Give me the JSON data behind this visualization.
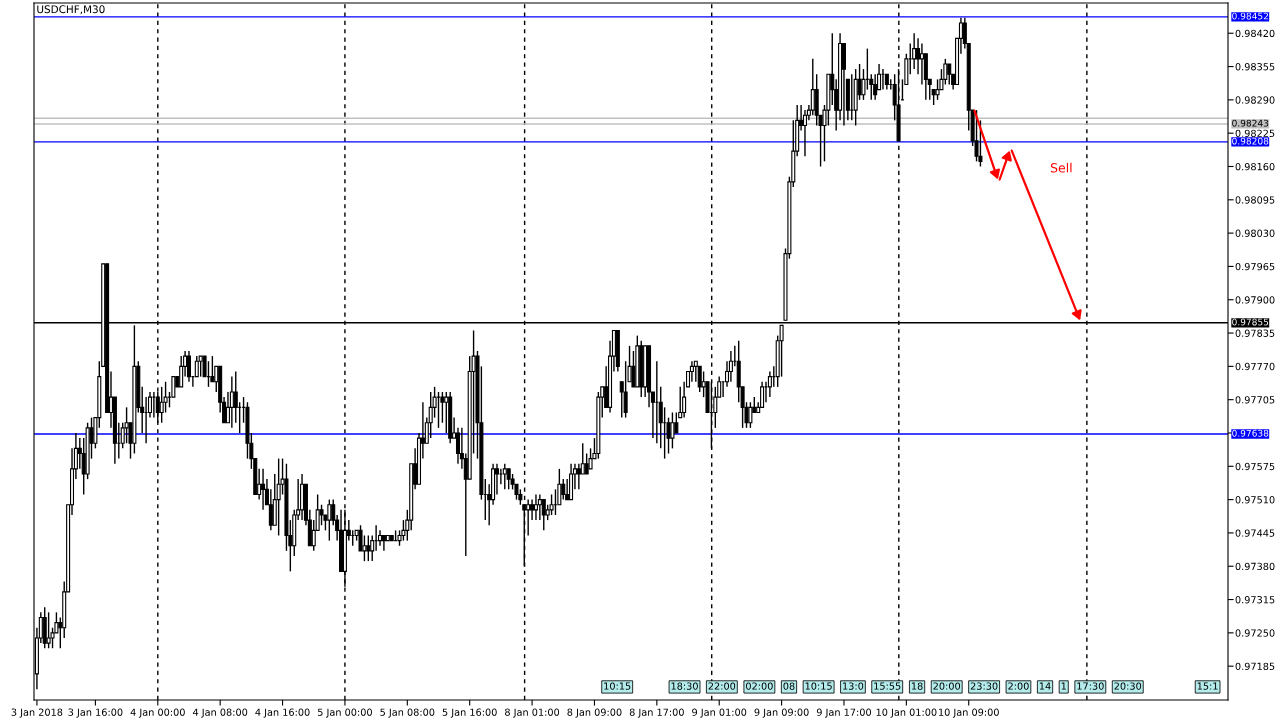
{
  "chart_data": {
    "type": "candlestick",
    "title": "USDCHF,M30",
    "color": "#000000",
    "categories": [
      "3 Jan 2018",
      null,
      null,
      null,
      null,
      null,
      null,
      null,
      null,
      null,
      null,
      null,
      null,
      null,
      null,
      "3 Jan 16:00",
      null,
      null,
      null,
      null,
      null,
      null,
      null,
      null,
      null,
      null,
      null,
      null,
      null,
      null,
      null,
      "4 Jan 00:00",
      null,
      null,
      null,
      null,
      null,
      null,
      null,
      null,
      null,
      null,
      null,
      null,
      null,
      null,
      null,
      "4 Jan 08:00",
      null,
      null,
      null,
      null,
      null,
      null,
      null,
      null,
      null,
      null,
      null,
      null,
      null,
      null,
      null,
      "4 Jan 16:00",
      null,
      null,
      null,
      null,
      null,
      null,
      null,
      null,
      null,
      null,
      null,
      null,
      null,
      null,
      null,
      "5 Jan 00:00",
      null,
      null,
      null,
      null,
      null,
      null,
      null,
      null,
      null,
      null,
      null,
      null,
      null,
      null,
      null,
      "5 Jan 08:00",
      null,
      null,
      null,
      null,
      null,
      null,
      null,
      null,
      null,
      null,
      null,
      null,
      null,
      null,
      null,
      "5 Jan 16:00",
      null,
      null,
      null,
      null,
      null,
      null,
      null,
      null,
      null,
      null,
      null,
      null,
      null,
      null,
      null,
      "8 Jan 01:00",
      null,
      null,
      null,
      null,
      null,
      null,
      null,
      null,
      null,
      null,
      null,
      null,
      null,
      null,
      null,
      "8 Jan 09:00",
      null,
      null,
      null,
      null,
      null,
      null,
      null,
      null,
      null,
      null,
      null,
      null,
      null,
      null,
      null,
      "8 Jan 17:00",
      null,
      null,
      null,
      null,
      null,
      null,
      null,
      null,
      null,
      null,
      null,
      null,
      null,
      null,
      null,
      "9 Jan 01:00",
      null,
      null,
      null,
      null,
      null,
      null,
      null,
      null,
      null,
      null,
      null,
      null,
      null,
      null,
      null,
      "9 Jan 09:00",
      null,
      null,
      null,
      null,
      null,
      null,
      null,
      null,
      null,
      null,
      null,
      null,
      null,
      null,
      null,
      "9 Jan 17:00",
      null,
      null,
      null,
      null,
      null,
      null,
      null,
      null,
      null,
      null,
      null,
      null,
      null,
      null,
      null,
      "10 Jan 01:00",
      null,
      null,
      null,
      null,
      null,
      null,
      null,
      null,
      null,
      null,
      null,
      null,
      null,
      null,
      null,
      "10 Jan 09:00",
      null,
      null,
      null,
      null,
      null,
      null,
      null,
      null,
      null,
      null,
      null,
      null,
      null,
      null,
      null,
      null,
      null,
      null,
      null,
      null,
      null,
      null,
      null,
      null,
      null,
      null,
      null,
      null,
      null,
      null,
      null,
      null,
      null,
      null,
      null,
      null,
      null,
      null,
      null,
      null,
      null,
      null,
      null,
      null,
      null,
      null,
      null,
      null,
      null,
      null,
      null,
      null,
      null,
      null,
      null,
      null,
      null,
      null,
      null,
      null,
      null,
      null,
      null,
      null,
      null,
      null
    ],
    "ohlc": [
      [
        0.9717,
        0.9726,
        0.9714,
        0.9724
      ],
      [
        0.9724,
        0.9729,
        0.9723,
        0.9728
      ],
      [
        0.9728,
        0.973,
        0.9722,
        0.9723
      ],
      [
        0.9723,
        0.9729,
        0.9722,
        0.9724
      ],
      [
        0.9724,
        0.9726,
        0.9722,
        0.9725
      ],
      [
        0.9725,
        0.9729,
        0.9725,
        0.9727
      ],
      [
        0.9727,
        0.9728,
        0.9722,
        0.9726
      ],
      [
        0.9726,
        0.9735,
        0.9724,
        0.9733
      ],
      [
        0.9733,
        0.975,
        0.9733,
        0.975
      ],
      [
        0.975,
        0.9761,
        0.9748,
        0.9757
      ],
      [
        0.9757,
        0.9764,
        0.9755,
        0.9761
      ],
      [
        0.9761,
        0.9763,
        0.9757,
        0.976
      ],
      [
        0.976,
        0.9763,
        0.9752,
        0.9756
      ],
      [
        0.9756,
        0.9766,
        0.9755,
        0.9765
      ],
      [
        0.9765,
        0.9767,
        0.9759,
        0.9762
      ],
      [
        0.9762,
        0.9767,
        0.9761,
        0.9767
      ],
      [
        0.9767,
        0.9778,
        0.9765,
        0.9775
      ],
      [
        0.9777,
        0.9797,
        0.9777,
        0.9797
      ],
      [
        0.9797,
        0.9797,
        0.9768,
        0.9768
      ],
      [
        0.9768,
        0.9776,
        0.9765,
        0.9771
      ],
      [
        0.9771,
        0.9771,
        0.9758,
        0.9762
      ],
      [
        0.9762,
        0.9766,
        0.9759,
        0.9762
      ],
      [
        0.9762,
        0.9766,
        0.9761,
        0.9765
      ],
      [
        0.9765,
        0.9769,
        0.9762,
        0.9766
      ],
      [
        0.9766,
        0.9766,
        0.9759,
        0.9762
      ],
      [
        0.9762,
        0.9785,
        0.976,
        0.9777
      ],
      [
        0.9777,
        0.9778,
        0.9768,
        0.9769
      ],
      [
        0.9769,
        0.9773,
        0.9764,
        0.9768
      ],
      [
        0.9768,
        0.9771,
        0.9762,
        0.9768
      ],
      [
        0.9768,
        0.9772,
        0.9767,
        0.9771
      ],
      [
        0.9771,
        0.9772,
        0.9767,
        0.9771
      ],
      [
        0.9771,
        0.9772,
        0.9766,
        0.9768
      ],
      [
        0.9768,
        0.9773,
        0.9766,
        0.977
      ],
      [
        0.977,
        0.9774,
        0.9768,
        0.9771
      ],
      [
        0.9771,
        0.9772,
        0.9769,
        0.9771
      ],
      [
        0.9771,
        0.9775,
        0.9771,
        0.9775
      ],
      [
        0.9775,
        0.9775,
        0.9773,
        0.9773
      ],
      [
        0.9773,
        0.9779,
        0.9773,
        0.9777
      ],
      [
        0.9777,
        0.978,
        0.9775,
        0.9779
      ],
      [
        0.9779,
        0.978,
        0.9774,
        0.9775
      ],
      [
        0.9775,
        0.9775,
        0.9773,
        0.9775
      ],
      [
        0.9775,
        0.9779,
        0.9775,
        0.9778
      ],
      [
        0.9778,
        0.9779,
        0.9775,
        0.9779
      ],
      [
        0.9779,
        0.9779,
        0.9775,
        0.9775
      ],
      [
        0.9775,
        0.9778,
        0.9773,
        0.9775
      ],
      [
        0.9775,
        0.9779,
        0.9774,
        0.9774
      ],
      [
        0.9774,
        0.9777,
        0.9772,
        0.9777
      ],
      [
        0.9777,
        0.9777,
        0.9768,
        0.977
      ],
      [
        0.977,
        0.9771,
        0.9766,
        0.9766
      ],
      [
        0.9766,
        0.9772,
        0.9766,
        0.9769
      ],
      [
        0.9769,
        0.9775,
        0.9765,
        0.9772
      ],
      [
        0.9772,
        0.9776,
        0.9766,
        0.9769
      ],
      [
        0.9769,
        0.977,
        0.9764,
        0.9769
      ],
      [
        0.9769,
        0.9771,
        0.9766,
        0.9769
      ],
      [
        0.9769,
        0.977,
        0.9759,
        0.9762
      ],
      [
        0.9762,
        0.9764,
        0.9757,
        0.9759
      ],
      [
        0.9759,
        0.9759,
        0.9752,
        0.9752
      ],
      [
        0.9752,
        0.9757,
        0.9751,
        0.9754
      ],
      [
        0.9754,
        0.9757,
        0.9749,
        0.9753
      ],
      [
        0.9753,
        0.9755,
        0.975,
        0.975
      ],
      [
        0.975,
        0.9753,
        0.9745,
        0.9746
      ],
      [
        0.9746,
        0.9756,
        0.9746,
        0.9751
      ],
      [
        0.9751,
        0.9759,
        0.9744,
        0.9754
      ],
      [
        0.9754,
        0.9759,
        0.9752,
        0.9755
      ],
      [
        0.9755,
        0.9758,
        0.9741,
        0.9744
      ],
      [
        0.9744,
        0.9747,
        0.9737,
        0.9742
      ],
      [
        0.9742,
        0.9749,
        0.974,
        0.9748
      ],
      [
        0.9748,
        0.9755,
        0.9747,
        0.9749
      ],
      [
        0.9749,
        0.9756,
        0.9747,
        0.9754
      ],
      [
        0.9754,
        0.9754,
        0.9746,
        0.9747
      ],
      [
        0.9747,
        0.9749,
        0.9742,
        0.9742
      ],
      [
        0.9742,
        0.9747,
        0.9741,
        0.9745
      ],
      [
        0.9745,
        0.9752,
        0.9745,
        0.9749
      ],
      [
        0.9749,
        0.975,
        0.9746,
        0.9748
      ],
      [
        0.9748,
        0.9748,
        0.9745,
        0.9747
      ],
      [
        0.9747,
        0.9751,
        0.9743,
        0.975
      ],
      [
        0.975,
        0.9751,
        0.9746,
        0.9747
      ],
      [
        0.9747,
        0.9748,
        0.9743,
        0.9745
      ],
      [
        0.9745,
        0.9749,
        0.9737,
        0.9737
      ],
      [
        0.9737,
        0.9749,
        0.9734,
        0.9745
      ],
      [
        0.9745,
        0.9747,
        0.9743,
        0.9744
      ],
      [
        0.9744,
        0.9745,
        0.9742,
        0.9744
      ],
      [
        0.9744,
        0.9745,
        0.9743,
        0.9745
      ],
      [
        0.9745,
        0.9746,
        0.9741,
        0.9741
      ],
      [
        0.9741,
        0.9744,
        0.9739,
        0.9742
      ],
      [
        0.9742,
        0.9744,
        0.9739,
        0.9741
      ],
      [
        0.9741,
        0.9744,
        0.9739,
        0.9743
      ],
      [
        0.9743,
        0.9746,
        0.9741,
        0.9743
      ],
      [
        0.9743,
        0.9745,
        0.9742,
        0.9744
      ],
      [
        0.9744,
        0.9744,
        0.9741,
        0.9743
      ],
      [
        0.9743,
        0.9744,
        0.9743,
        0.9744
      ],
      [
        0.9744,
        0.9744,
        0.9743,
        0.9743
      ],
      [
        0.9743,
        0.9745,
        0.9743,
        0.9743
      ],
      [
        0.9743,
        0.9745,
        0.9742,
        0.9744
      ],
      [
        0.9744,
        0.9747,
        0.9743,
        0.9745
      ],
      [
        0.9745,
        0.9749,
        0.9743,
        0.9747
      ],
      [
        0.9747,
        0.9758,
        0.9745,
        0.9758
      ],
      [
        0.9758,
        0.9761,
        0.9753,
        0.9754
      ],
      [
        0.9754,
        0.9764,
        0.9754,
        0.9763
      ],
      [
        0.9763,
        0.977,
        0.9759,
        0.9762
      ],
      [
        0.9762,
        0.9767,
        0.9762,
        0.9766
      ],
      [
        0.9766,
        0.9772,
        0.9763,
        0.9769
      ],
      [
        0.9769,
        0.9773,
        0.9767,
        0.9771
      ],
      [
        0.9771,
        0.9772,
        0.9765,
        0.9771
      ],
      [
        0.9771,
        0.9772,
        0.9766,
        0.977
      ],
      [
        0.977,
        0.9772,
        0.9764,
        0.9771
      ],
      [
        0.9771,
        0.9772,
        0.9762,
        0.9763
      ],
      [
        0.9763,
        0.9767,
        0.9763,
        0.9764
      ],
      [
        0.9764,
        0.9765,
        0.9758,
        0.976
      ],
      [
        0.976,
        0.9765,
        0.9757,
        0.9759
      ],
      [
        0.9759,
        0.976,
        0.974,
        0.9755
      ],
      [
        0.9755,
        0.9779,
        0.9755,
        0.9776
      ],
      [
        0.9776,
        0.9784,
        0.976,
        0.9779
      ],
      [
        0.9779,
        0.978,
        0.9759,
        0.9766
      ],
      [
        0.9766,
        0.9777,
        0.9751,
        0.9752
      ],
      [
        0.9752,
        0.9755,
        0.9747,
        0.9752
      ],
      [
        0.9752,
        0.9754,
        0.9746,
        0.9751
      ],
      [
        0.9751,
        0.9758,
        0.975,
        0.9757
      ],
      [
        0.9757,
        0.9758,
        0.9752,
        0.9756
      ],
      [
        0.9756,
        0.9757,
        0.9754,
        0.9756
      ],
      [
        0.9756,
        0.9758,
        0.9753,
        0.9757
      ],
      [
        0.9757,
        0.9757,
        0.9753,
        0.9755
      ],
      [
        0.9755,
        0.9756,
        0.9753,
        0.9754
      ],
      [
        0.9754,
        0.9754,
        0.9751,
        0.9752
      ],
      [
        0.9752,
        0.9753,
        0.975,
        0.9751
      ],
      [
        0.975,
        0.975,
        0.9738,
        0.9749
      ],
      [
        0.9749,
        0.9751,
        0.9744,
        0.975
      ],
      [
        0.975,
        0.9751,
        0.9747,
        0.9749
      ],
      [
        0.9749,
        0.9752,
        0.9747,
        0.975
      ],
      [
        0.975,
        0.9752,
        0.9747,
        0.9751
      ],
      [
        0.9751,
        0.9751,
        0.9745,
        0.9748
      ],
      [
        0.9748,
        0.975,
        0.9747,
        0.9749
      ],
      [
        0.9749,
        0.9752,
        0.9748,
        0.975
      ],
      [
        0.975,
        0.9753,
        0.9748,
        0.975
      ],
      [
        0.975,
        0.9757,
        0.975,
        0.9754
      ],
      [
        0.9754,
        0.9755,
        0.9751,
        0.9752
      ],
      [
        0.9752,
        0.9755,
        0.9751,
        0.9751
      ],
      [
        0.9751,
        0.9758,
        0.9751,
        0.9756
      ],
      [
        0.9756,
        0.9758,
        0.9753,
        0.9757
      ],
      [
        0.9757,
        0.9758,
        0.9753,
        0.9756
      ],
      [
        0.9756,
        0.9762,
        0.9756,
        0.9758
      ],
      [
        0.9758,
        0.976,
        0.9756,
        0.9756
      ],
      [
        0.9757,
        0.9761,
        0.9757,
        0.9759
      ],
      [
        0.9759,
        0.9763,
        0.9759,
        0.976
      ],
      [
        0.976,
        0.9772,
        0.9759,
        0.9771
      ],
      [
        0.9771,
        0.9773,
        0.9767,
        0.9773
      ],
      [
        0.9773,
        0.9777,
        0.9769,
        0.9769
      ],
      [
        0.9769,
        0.9782,
        0.9768,
        0.9779
      ],
      [
        0.9779,
        0.9784,
        0.9776,
        0.9784
      ],
      [
        0.9784,
        0.9784,
        0.9776,
        0.9777
      ],
      [
        0.9774,
        0.9774,
        0.9767,
        0.9772
      ],
      [
        0.9772,
        0.9778,
        0.9767,
        0.9768
      ],
      [
        0.9774,
        0.9781,
        0.9774,
        0.9777
      ],
      [
        0.9777,
        0.978,
        0.9773,
        0.9773
      ],
      [
        0.9773,
        0.9783,
        0.9773,
        0.9781
      ],
      [
        0.9781,
        0.9782,
        0.9771,
        0.9773
      ],
      [
        0.9773,
        0.9781,
        0.9771,
        0.9781
      ],
      [
        0.9781,
        0.9781,
        0.9769,
        0.9772
      ],
      [
        0.9772,
        0.9772,
        0.9763,
        0.977
      ],
      [
        0.977,
        0.9778,
        0.9762,
        0.977
      ],
      [
        0.977,
        0.9773,
        0.9761,
        0.9766
      ],
      [
        0.9766,
        0.9769,
        0.9759,
        0.9766
      ],
      [
        0.9766,
        0.9767,
        0.976,
        0.9763
      ],
      [
        0.9763,
        0.9768,
        0.9761,
        0.9766
      ],
      [
        0.9766,
        0.9768,
        0.9764,
        0.9764
      ],
      [
        0.9767,
        0.9773,
        0.9767,
        0.9768
      ],
      [
        0.9768,
        0.9774,
        0.9767,
        0.9771
      ],
      [
        0.9773,
        0.9776,
        0.9773,
        0.9776
      ],
      [
        0.9776,
        0.9778,
        0.9774,
        0.9777
      ],
      [
        0.9777,
        0.9778,
        0.9774,
        0.9778
      ],
      [
        0.9777,
        0.9777,
        0.9772,
        0.9773
      ],
      [
        0.9773,
        0.9776,
        0.9771,
        0.9774
      ],
      [
        0.9774,
        0.9774,
        0.9768,
        0.9768
      ],
      [
        0.9768,
        0.9774,
        0.9761,
        0.9768
      ],
      [
        0.9768,
        0.9773,
        0.9765,
        0.9771
      ],
      [
        0.9771,
        0.9775,
        0.9771,
        0.9774
      ],
      [
        0.9774,
        0.9774,
        0.9771,
        0.9774
      ],
      [
        0.9774,
        0.9778,
        0.9773,
        0.9776
      ],
      [
        0.9776,
        0.978,
        0.9774,
        0.9778
      ],
      [
        0.9778,
        0.9781,
        0.9777,
        0.9778
      ],
      [
        0.9778,
        0.9782,
        0.977,
        0.9773
      ],
      [
        0.9773,
        0.9773,
        0.9765,
        0.9769
      ],
      [
        0.9769,
        0.977,
        0.9765,
        0.9766
      ],
      [
        0.9766,
        0.977,
        0.9765,
        0.9769
      ],
      [
        0.9769,
        0.9771,
        0.9768,
        0.9768
      ],
      [
        0.9768,
        0.977,
        0.9768,
        0.9769
      ],
      [
        0.9769,
        0.9774,
        0.9769,
        0.9773
      ],
      [
        0.9773,
        0.9774,
        0.977,
        0.9773
      ],
      [
        0.9773,
        0.9776,
        0.9771,
        0.9775
      ],
      [
        0.9775,
        0.9777,
        0.9773,
        0.9775
      ],
      [
        0.9775,
        0.9783,
        0.9773,
        0.9782
      ],
      [
        0.9782,
        0.9785,
        0.9775,
        0.9785
      ],
      [
        0.9786,
        0.98,
        0.9786,
        0.9799
      ],
      [
        0.9799,
        0.9814,
        0.9798,
        0.9813
      ],
      [
        0.9813,
        0.9825,
        0.9812,
        0.9819
      ],
      [
        0.9819,
        0.9828,
        0.9818,
        0.9825
      ],
      [
        0.9825,
        0.9828,
        0.9823,
        0.9824
      ],
      [
        0.9824,
        0.9827,
        0.9818,
        0.9826
      ],
      [
        0.9826,
        0.9828,
        0.9825,
        0.9827
      ],
      [
        0.9827,
        0.9837,
        0.9826,
        0.9831
      ],
      [
        0.9831,
        0.9834,
        0.9824,
        0.9826
      ],
      [
        0.9826,
        0.9826,
        0.9816,
        0.9824
      ],
      [
        0.9824,
        0.9828,
        0.9817,
        0.9827
      ],
      [
        0.9827,
        0.9834,
        0.9824,
        0.9834
      ],
      [
        0.9834,
        0.9842,
        0.9828,
        0.9831
      ],
      [
        0.9831,
        0.9833,
        0.9823,
        0.9827
      ],
      [
        0.9827,
        0.9842,
        0.9825,
        0.984
      ],
      [
        0.984,
        0.984,
        0.9824,
        0.9835
      ],
      [
        0.9833,
        0.9833,
        0.9825,
        0.9827
      ],
      [
        0.9827,
        0.9834,
        0.9825,
        0.9827
      ],
      [
        0.9827,
        0.9835,
        0.9824,
        0.9833
      ],
      [
        0.9833,
        0.9836,
        0.9829,
        0.983
      ],
      [
        0.983,
        0.9835,
        0.9829,
        0.9833
      ],
      [
        0.9833,
        0.9839,
        0.9831,
        0.9833
      ],
      [
        0.9833,
        0.9834,
        0.9829,
        0.9832
      ],
      [
        0.9832,
        0.9834,
        0.9829,
        0.983
      ],
      [
        0.9831,
        0.9836,
        0.9831,
        0.9834
      ],
      [
        0.9834,
        0.9835,
        0.9831,
        0.9834
      ],
      [
        0.9834,
        0.9834,
        0.9831,
        0.9832
      ],
      [
        0.9832,
        0.9833,
        0.9831,
        0.9832
      ],
      [
        0.9832,
        0.9834,
        0.9825,
        0.9828
      ],
      [
        0.9828,
        0.9835,
        0.9821,
        0.9821
      ],
      [
        0.9829,
        0.9833,
        0.9829,
        0.9829
      ],
      [
        0.9832,
        0.9838,
        0.9832,
        0.9837
      ],
      [
        0.9837,
        0.984,
        0.9834,
        0.9837
      ],
      [
        0.9837,
        0.9842,
        0.9835,
        0.9839
      ],
      [
        0.9839,
        0.9841,
        0.9834,
        0.9837
      ],
      [
        0.9837,
        0.984,
        0.9832,
        0.9838
      ],
      [
        0.9838,
        0.9838,
        0.9829,
        0.9833
      ],
      [
        0.9833,
        0.9833,
        0.9829,
        0.9832
      ],
      [
        0.9831,
        0.9831,
        0.9828,
        0.983
      ],
      [
        0.983,
        0.9833,
        0.9829,
        0.9831
      ],
      [
        0.9831,
        0.9835,
        0.9831,
        0.9833
      ],
      [
        0.9833,
        0.9837,
        0.9832,
        0.9836
      ],
      [
        0.9836,
        0.9836,
        0.9832,
        0.9834
      ],
      [
        0.9834,
        0.9834,
        0.9831,
        0.9832
      ],
      [
        0.9832,
        0.9841,
        0.9832,
        0.9841
      ],
      [
        0.9841,
        0.9845,
        0.9838,
        0.9844
      ],
      [
        0.9844,
        0.9845,
        0.9839,
        0.984
      ],
      [
        0.984,
        0.984,
        0.9823,
        0.9827
      ],
      [
        0.9827,
        0.9827,
        0.982,
        0.9821
      ],
      [
        0.9821,
        0.9827,
        0.9817,
        0.9818
      ],
      [
        0.9818,
        0.9825,
        0.9816,
        0.9817
      ],
      null,
      null,
      null,
      null,
      null,
      null,
      null,
      null,
      null,
      null,
      null,
      null,
      null,
      null,
      null,
      null,
      null,
      null,
      null,
      null,
      null,
      null,
      null,
      null,
      null,
      null,
      null,
      null,
      null,
      null,
      null,
      null,
      null,
      null,
      null,
      null,
      null,
      null,
      null,
      null,
      null,
      null,
      null,
      null,
      null,
      null,
      null,
      null,
      null,
      null,
      null,
      null,
      null,
      null,
      null,
      null,
      null,
      null,
      null,
      null,
      null,
      null,
      null
    ],
    "ylim": [
      0.97119,
      0.98479
    ],
    "yticks": [
      {
        "value": 0.9842,
        "label": "0.98420"
      },
      {
        "value": 0.98355,
        "label": "0.98355"
      },
      {
        "value": 0.9829,
        "label": "0.98290"
      },
      {
        "value": 0.98225,
        "label": "0.98225"
      },
      {
        "value": 0.9816,
        "label": "0.98160"
      },
      {
        "value": 0.98095,
        "label": "0.98095"
      },
      {
        "value": 0.9803,
        "label": "0.98030"
      },
      {
        "value": 0.97965,
        "label": "0.97965"
      },
      {
        "value": 0.979,
        "label": "0.97900"
      },
      {
        "value": 0.97835,
        "label": "0.97835"
      },
      {
        "value": 0.9777,
        "label": "0.97770"
      },
      {
        "value": 0.97705,
        "label": "0.97705"
      },
      {
        "value": 0.9764,
        "label": null
      },
      {
        "value": 0.97575,
        "label": "0.97575"
      },
      {
        "value": 0.9751,
        "label": "0.97510"
      },
      {
        "value": 0.97445,
        "label": "0.97445"
      },
      {
        "value": 0.9738,
        "label": "0.97380"
      },
      {
        "value": 0.97315,
        "label": "0.97315"
      },
      {
        "value": 0.9725,
        "label": "0.97250"
      },
      {
        "value": 0.97185,
        "label": "0.97185"
      }
    ],
    "ref_lines": [
      {
        "axis": "y",
        "value": 0.98452,
        "label": "0.98452",
        "color": "#0000ff",
        "line_style": "solid"
      },
      {
        "axis": "y",
        "value": 0.98254,
        "label": null,
        "color": "#c0c0c0",
        "line_style": "solid"
      },
      {
        "axis": "y",
        "value": 0.98243,
        "label": "0.98243",
        "color": "#c0c0c0",
        "line_style": "solid"
      },
      {
        "axis": "y",
        "value": 0.98208,
        "label": "0.98208",
        "color": "#0000ff",
        "line_style": "solid"
      },
      {
        "axis": "y",
        "value": 0.97855,
        "label": "0.97855",
        "color": "#000000",
        "line_style": "solid"
      },
      {
        "axis": "y",
        "value": 0.97638,
        "label": "0.97638",
        "color": "#0000ff",
        "line_style": "solid"
      }
    ],
    "annotations": [
      "Sell",
      "10:15",
      "18:30",
      "22:00",
      "02:00",
      "08",
      "10:15",
      "13:0",
      "15:55",
      "18",
      "20:00",
      "23:30",
      "2:00",
      "14",
      "1",
      "17:30",
      "20:30",
      "15:1"
    ],
    "grid": false,
    "legend": false
  }
}
